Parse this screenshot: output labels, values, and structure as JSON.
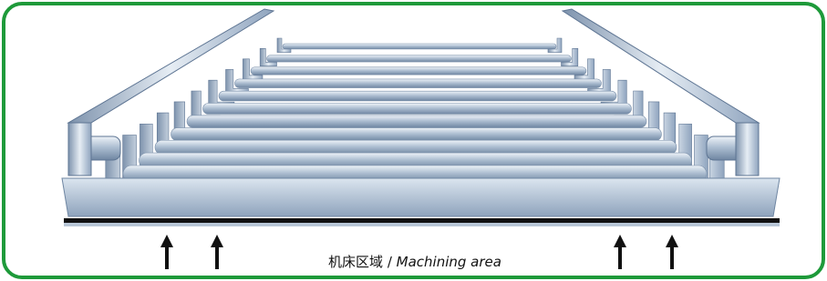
{
  "label": {
    "cn": "机床区域",
    "separator": "/",
    "en": "Machining area"
  }
}
